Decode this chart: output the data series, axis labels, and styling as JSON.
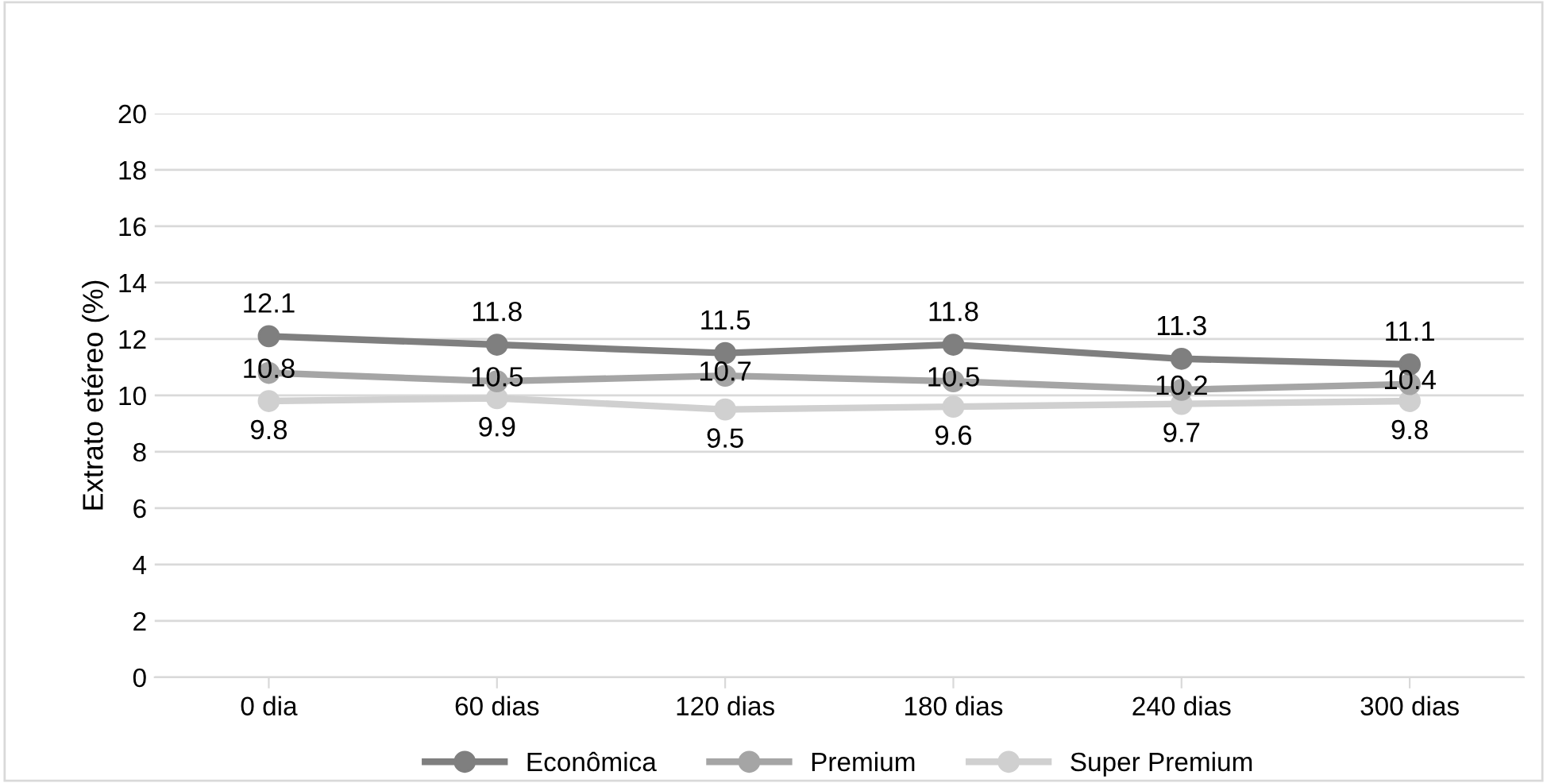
{
  "chart_data": {
    "type": "line",
    "ylabel": "Extrato etéreo (%)",
    "categories": [
      "0 dia",
      "60 dias",
      "120 dias",
      "180 dias",
      "240 dias",
      "300 dias"
    ],
    "series": [
      {
        "name": "Econômica",
        "color": "#7f7f7f",
        "values": [
          12.1,
          11.8,
          11.5,
          11.8,
          11.3,
          11.1
        ]
      },
      {
        "name": "Premium",
        "color": "#a5a5a5",
        "values": [
          10.8,
          10.5,
          10.7,
          10.5,
          10.2,
          10.4
        ]
      },
      {
        "name": "Super Premium",
        "color": "#d0d0d0",
        "values": [
          9.8,
          9.9,
          9.5,
          9.6,
          9.7,
          9.8
        ]
      }
    ],
    "ylim": [
      0,
      20
    ],
    "yticks": [
      0,
      2,
      4,
      6,
      8,
      10,
      12,
      14,
      16,
      18,
      20
    ],
    "grid": "y",
    "legend": "bottom",
    "marker": "circle",
    "line_style": "solid",
    "data_labels": true
  }
}
